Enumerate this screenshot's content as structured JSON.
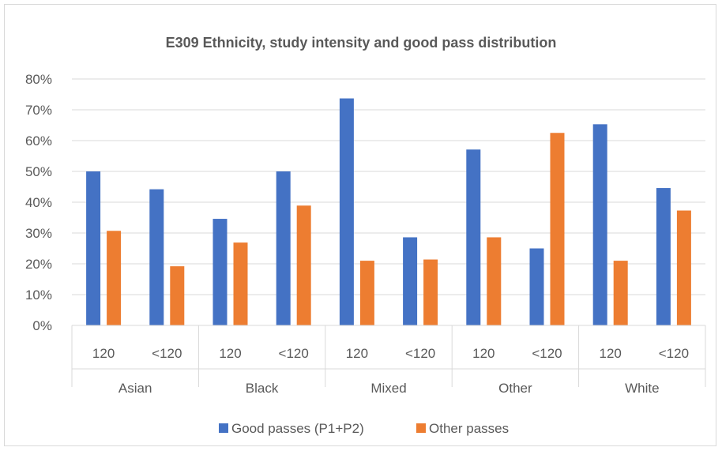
{
  "chart_data": {
    "type": "bar",
    "title": "E309 Ethnicity, study intensity and good pass distribution",
    "xlabel": "",
    "ylabel": "",
    "ylim": [
      0,
      80
    ],
    "yticks": [
      "0%",
      "10%",
      "20%",
      "30%",
      "40%",
      "50%",
      "60%",
      "70%",
      "80%"
    ],
    "groups": [
      {
        "label": "Asian",
        "categories": [
          "120",
          "<120"
        ]
      },
      {
        "label": "Black",
        "categories": [
          "120",
          "<120"
        ]
      },
      {
        "label": "Mixed",
        "categories": [
          "120",
          "<120"
        ]
      },
      {
        "label": "Other",
        "categories": [
          "120",
          "<120"
        ]
      },
      {
        "label": "White",
        "categories": [
          "120",
          "<120"
        ]
      }
    ],
    "series": [
      {
        "name": "Good passes (P1+P2)",
        "color": "#4472c4",
        "values": [
          50.0,
          44.2,
          34.6,
          50.0,
          73.7,
          28.6,
          57.1,
          25.0,
          65.3,
          44.6
        ]
      },
      {
        "name": "Other passes",
        "color": "#ed7d31",
        "values": [
          30.7,
          19.2,
          26.9,
          38.9,
          21.0,
          21.4,
          28.6,
          62.5,
          21.0,
          37.3
        ]
      }
    ],
    "grid": true,
    "legend": "bottom"
  }
}
